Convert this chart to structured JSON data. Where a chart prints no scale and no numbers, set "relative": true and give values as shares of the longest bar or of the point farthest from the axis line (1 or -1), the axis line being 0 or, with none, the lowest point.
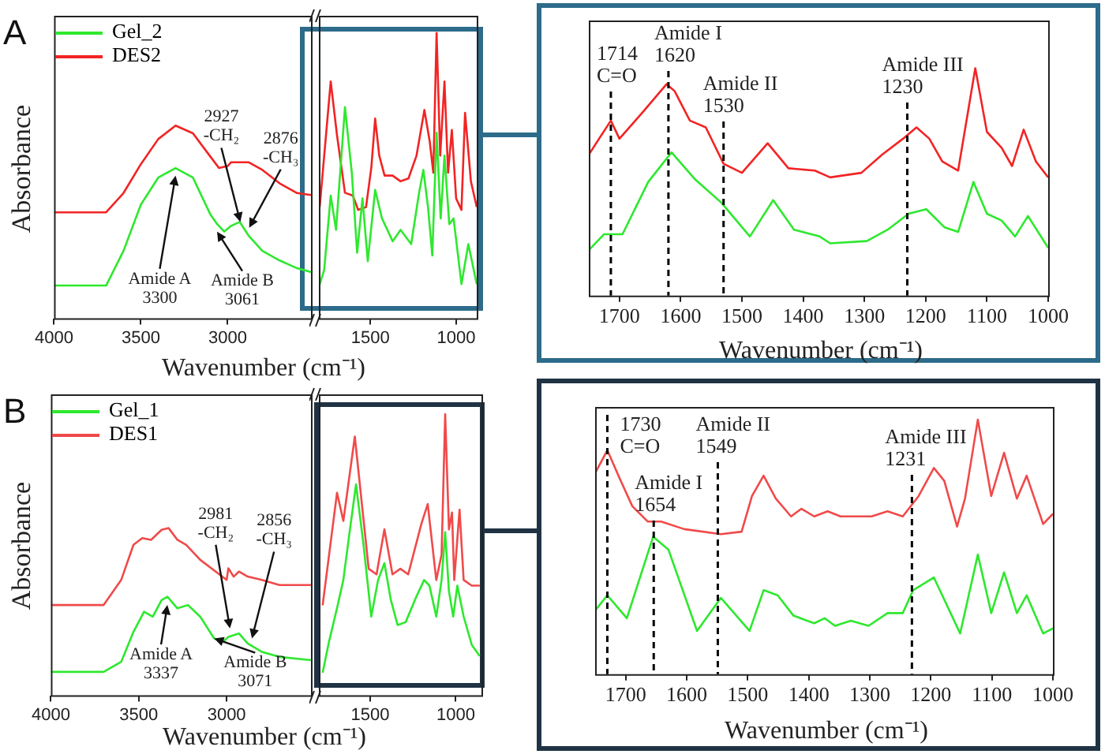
{
  "chart_data": [
    {
      "type": "line",
      "title": "A",
      "ylabel": "Absorbance",
      "xlabel": "Wavenumber (cm⁻¹)",
      "relative": true,
      "tick_labels": "x",
      "legend": "top left",
      "xlim": [
        4000,
        2520
      ],
      "xticks": [
        4000,
        3500,
        3000
      ],
      "series": [
        {
          "name": "Gel_2",
          "color": "#2ee82e",
          "x": [
            4000,
            3700,
            3600,
            3500,
            3400,
            3300,
            3200,
            3100,
            3061,
            3020,
            2980,
            2930,
            2880,
            2800,
            2700,
            2600,
            2520
          ],
          "values": [
            0.17,
            0.17,
            0.35,
            0.59,
            0.73,
            0.78,
            0.73,
            0.54,
            0.49,
            0.45,
            0.48,
            0.5,
            0.43,
            0.35,
            0.3,
            0.26,
            0.24
          ]
        },
        {
          "name": "DES2",
          "color": "#f22424",
          "x": [
            4000,
            3700,
            3600,
            3500,
            3400,
            3300,
            3200,
            3100,
            3050,
            3000,
            2980,
            2930,
            2880,
            2800,
            2700,
            2600,
            2520
          ],
          "values": [
            0.55,
            0.55,
            0.65,
            0.8,
            0.93,
            1,
            0.96,
            0.84,
            0.78,
            0.79,
            0.81,
            0.81,
            0.81,
            0.77,
            0.7,
            0.65,
            0.64
          ]
        }
      ],
      "annotations": [
        {
          "text": "2927\n-CH₂",
          "x": 2927,
          "y": 0.5
        },
        {
          "text": "2876\n-CH₃",
          "x": 2876,
          "y": 0.47
        },
        {
          "text": "Amide A\n3300",
          "x": 3300,
          "y": 0.74
        },
        {
          "text": "Amide B\n3061",
          "x": 3061,
          "y": 0.45
        }
      ]
    },
    {
      "type": "line",
      "relative": true,
      "tick_labels": "x",
      "xlim": [
        1800,
        880
      ],
      "xticks": [
        1500,
        1000
      ],
      "series": [
        {
          "color": "#2ee82e",
          "x": [
            1800,
            1769,
            1731,
            1700,
            1648,
            1608,
            1577,
            1546,
            1515,
            1472,
            1432,
            1370,
            1324,
            1262,
            1216,
            1191,
            1164,
            1139,
            1114,
            1090,
            1068,
            1040,
            1015,
            969,
            929,
            880
          ],
          "values": [
            0.11,
            0.17,
            0.43,
            0.31,
            0.74,
            0.51,
            0.23,
            0.42,
            0.2,
            0.45,
            0.35,
            0.27,
            0.31,
            0.26,
            0.44,
            0.52,
            0.39,
            0.22,
            0.65,
            0.35,
            0.57,
            0.33,
            0.35,
            0.12,
            0.26,
            0.12
          ]
        },
        {
          "color": "#f22424",
          "x": [
            1795,
            1731,
            1694,
            1648,
            1602,
            1571,
            1525,
            1494,
            1472,
            1448,
            1417,
            1370,
            1324,
            1278,
            1231,
            1185,
            1154,
            1133,
            1114,
            1093,
            1068,
            1047,
            1025,
            1000,
            969,
            948,
            914,
            880
          ],
          "values": [
            0.39,
            0.83,
            0.64,
            0.44,
            0.43,
            0.38,
            0.39,
            0.53,
            0.7,
            0.57,
            0.5,
            0.5,
            0.48,
            0.49,
            0.57,
            0.73,
            0.62,
            0.51,
            1,
            0.57,
            0.83,
            0.51,
            0.66,
            0.42,
            0.38,
            0.72,
            0.48,
            0.39
          ]
        }
      ]
    },
    {
      "type": "line",
      "xlabel": "Wavenumber (cm⁻¹)",
      "relative": true,
      "tick_labels": "x",
      "xlim": [
        1750,
        1000
      ],
      "xticks": [
        1700,
        1600,
        1500,
        1400,
        1300,
        1200,
        1100,
        1000
      ],
      "series": [
        {
          "color": "#2ee82e",
          "x": [
            1750,
            1725,
            1695,
            1653,
            1615,
            1576,
            1534,
            1487,
            1449,
            1415,
            1373,
            1356,
            1296,
            1262,
            1228,
            1199,
            1169,
            1147,
            1122,
            1100,
            1076,
            1054,
            1033,
            1000
          ],
          "values": [
            0.2,
            0.27,
            0.27,
            0.5,
            0.63,
            0.51,
            0.41,
            0.26,
            0.42,
            0.29,
            0.26,
            0.23,
            0.24,
            0.29,
            0.36,
            0.38,
            0.3,
            0.28,
            0.5,
            0.36,
            0.33,
            0.26,
            0.35,
            0.21
          ]
        },
        {
          "color": "#f22424",
          "x": [
            1750,
            1714,
            1700,
            1661,
            1623,
            1610,
            1585,
            1559,
            1530,
            1500,
            1458,
            1424,
            1381,
            1356,
            1305,
            1271,
            1237,
            1215,
            1194,
            1173,
            1147,
            1119,
            1100,
            1076,
            1059,
            1040,
            1020,
            1000
          ],
          "values": [
            0.62,
            0.77,
            0.69,
            0.81,
            0.93,
            0.9,
            0.77,
            0.74,
            0.58,
            0.54,
            0.67,
            0.56,
            0.55,
            0.52,
            0.54,
            0.62,
            0.69,
            0.74,
            0.69,
            0.59,
            0.55,
            1,
            0.72,
            0.65,
            0.57,
            0.73,
            0.59,
            0.52
          ]
        }
      ],
      "ref_lines": [
        {
          "axis": "x",
          "value": 1714,
          "label": "1714\nC=O",
          "color": "#000000",
          "line_style": "dashed"
        },
        {
          "axis": "x",
          "value": 1620,
          "label": "Amide I\n1620",
          "color": "#000000",
          "line_style": "dashed"
        },
        {
          "axis": "x",
          "value": 1530,
          "label": "Amide II\n1530",
          "color": "#000000",
          "line_style": "dashed"
        },
        {
          "axis": "x",
          "value": 1230,
          "label": "Amide III\n1230",
          "color": "#000000",
          "line_style": "dashed"
        }
      ]
    },
    {
      "type": "line",
      "title": "B",
      "ylabel": "Absorbance",
      "xlabel": "Wavenumber (cm⁻¹)",
      "relative": true,
      "tick_labels": "x",
      "legend": "top left",
      "xlim": [
        4000,
        2520
      ],
      "xticks": [
        4000,
        3500,
        3000
      ],
      "series": [
        {
          "name": "Gel_1",
          "color": "#2ee82e",
          "x": [
            4000,
            3700,
            3600,
            3530,
            3470,
            3420,
            3370,
            3337,
            3280,
            3220,
            3150,
            3071,
            3020,
            2990,
            2930,
            2880,
            2800,
            2700,
            2520
          ],
          "values": [
            0.14,
            0.14,
            0.2,
            0.38,
            0.5,
            0.47,
            0.57,
            0.59,
            0.52,
            0.54,
            0.47,
            0.34,
            0.32,
            0.35,
            0.37,
            0.31,
            0.26,
            0.23,
            0.21
          ]
        },
        {
          "name": "DES1",
          "color": "#f04a4a",
          "x": [
            4000,
            3700,
            3600,
            3530,
            3480,
            3430,
            3370,
            3330,
            3280,
            3230,
            3150,
            3050,
            3000,
            2990,
            2960,
            2930,
            2880,
            2800,
            2700,
            2520
          ],
          "values": [
            0.54,
            0.54,
            0.69,
            0.9,
            0.94,
            0.93,
            0.99,
            1,
            0.93,
            0.9,
            0.81,
            0.73,
            0.69,
            0.76,
            0.71,
            0.74,
            0.71,
            0.69,
            0.66,
            0.66
          ]
        }
      ],
      "annotations": [
        {
          "text": "2981\n-CH₂",
          "x": 2981,
          "y": 0.4
        },
        {
          "text": "2856\n-CH₃",
          "x": 2856,
          "y": 0.34
        },
        {
          "text": "Amide A\n3337",
          "x": 3337,
          "y": 0.54
        },
        {
          "text": "Amide B\n3071",
          "x": 3071,
          "y": 0.34
        }
      ]
    },
    {
      "type": "line",
      "relative": true,
      "tick_labels": "x",
      "xlim": [
        1800,
        850
      ],
      "xticks": [
        1500,
        1000
      ],
      "series": [
        {
          "color": "#2ee82e",
          "x": [
            1778,
            1741,
            1694,
            1657,
            1627,
            1583,
            1540,
            1494,
            1454,
            1417,
            1380,
            1340,
            1293,
            1231,
            1185,
            1154,
            1114,
            1083,
            1062,
            1040,
            1015,
            991,
            954,
            907,
            861
          ],
          "values": [
            0.08,
            0.19,
            0.31,
            0.41,
            0.55,
            0.75,
            0.54,
            0.28,
            0.41,
            0.47,
            0.34,
            0.25,
            0.26,
            0.35,
            0.41,
            0.39,
            0.28,
            0.41,
            0.58,
            0.37,
            0.28,
            0.39,
            0.28,
            0.18,
            0.14
          ]
        },
        {
          "color": "#f04a4a",
          "x": [
            1778,
            1694,
            1657,
            1590,
            1509,
            1463,
            1417,
            1370,
            1324,
            1278,
            1201,
            1164,
            1114,
            1083,
            1062,
            1040,
            1022,
            1009,
            978,
            954,
            907,
            860
          ],
          "values": [
            0.32,
            0.72,
            0.62,
            0.92,
            0.45,
            0.43,
            0.59,
            0.43,
            0.45,
            0.43,
            0.61,
            0.68,
            0.41,
            0.5,
            1,
            0.59,
            0.65,
            0.41,
            0.66,
            0.41,
            0.39,
            0.39
          ]
        }
      ]
    },
    {
      "type": "line",
      "xlabel": "Wavenumber (cm⁻¹)",
      "relative": true,
      "tick_labels": "x",
      "xlim": [
        1750,
        1000
      ],
      "xticks": [
        1700,
        1600,
        1500,
        1400,
        1300,
        1200,
        1100,
        1000
      ],
      "series": [
        {
          "color": "#2ee82e",
          "x": [
            1750,
            1730,
            1698,
            1655,
            1630,
            1583,
            1544,
            1497,
            1474,
            1451,
            1425,
            1391,
            1374,
            1357,
            1331,
            1302,
            1271,
            1246,
            1229,
            1195,
            1152,
            1123,
            1101,
            1080,
            1059,
            1043,
            1016,
            1000
          ],
          "values": [
            0.25,
            0.31,
            0.22,
            0.54,
            0.49,
            0.17,
            0.3,
            0.17,
            0.33,
            0.31,
            0.23,
            0.2,
            0.22,
            0.19,
            0.21,
            0.19,
            0.24,
            0.24,
            0.33,
            0.38,
            0.16,
            0.47,
            0.24,
            0.4,
            0.24,
            0.31,
            0.16,
            0.18
          ]
        },
        {
          "color": "#f04a4a",
          "x": [
            1750,
            1730,
            1710,
            1689,
            1664,
            1642,
            1604,
            1544,
            1510,
            1493,
            1474,
            1454,
            1429,
            1412,
            1391,
            1369,
            1348,
            1297,
            1271,
            1246,
            1220,
            1195,
            1178,
            1157,
            1144,
            1123,
            1101,
            1080,
            1059,
            1043,
            1016,
            1000
          ],
          "values": [
            0.79,
            0.88,
            0.77,
            0.66,
            0.6,
            0.6,
            0.57,
            0.55,
            0.56,
            0.7,
            0.78,
            0.69,
            0.62,
            0.65,
            0.62,
            0.64,
            0.62,
            0.62,
            0.64,
            0.62,
            0.7,
            0.81,
            0.76,
            0.58,
            0.69,
            1,
            0.7,
            0.87,
            0.69,
            0.78,
            0.59,
            0.63
          ]
        }
      ],
      "ref_lines": [
        {
          "axis": "x",
          "value": 1730,
          "label": "1730\nC=O",
          "color": "#000000",
          "line_style": "dashed"
        },
        {
          "axis": "x",
          "value": 1654,
          "label": "Amide I\n1654",
          "color": "#000000",
          "line_style": "dashed"
        },
        {
          "axis": "x",
          "value": 1549,
          "label": "Amide II\n1549",
          "color": "#000000",
          "line_style": "dashed"
        },
        {
          "axis": "x",
          "value": 1231,
          "label": "Amide III\n1231",
          "color": "#000000",
          "line_style": "dashed"
        }
      ]
    }
  ]
}
